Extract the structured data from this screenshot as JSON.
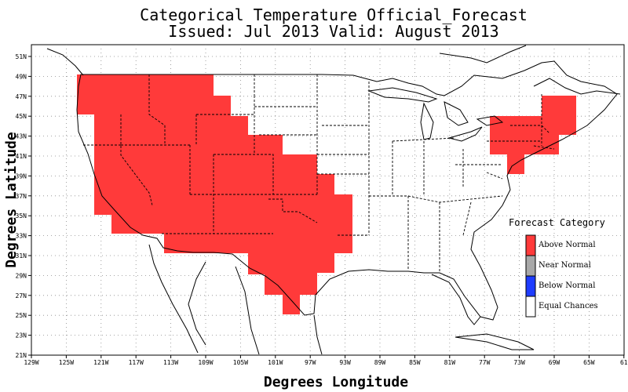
{
  "title": {
    "line1": "Categorical Temperature Official_Forecast",
    "line2": "Issued: Jul 2013 Valid: August 2013"
  },
  "axes": {
    "xlabel": "Degrees Longitude",
    "ylabel": "Degrees Latitude",
    "x_ticks": [
      "129W",
      "125W",
      "121W",
      "117W",
      "113W",
      "109W",
      "105W",
      "101W",
      "97W",
      "93W",
      "89W",
      "85W",
      "81W",
      "77W",
      "73W",
      "69W",
      "65W",
      "61"
    ],
    "y_ticks": [
      "21N",
      "23N",
      "25N",
      "27N",
      "29N",
      "31N",
      "33N",
      "35N",
      "37N",
      "39N",
      "41N",
      "43N",
      "45N",
      "47N",
      "49N",
      "51N"
    ]
  },
  "legend": {
    "title": "Forecast Category",
    "items": [
      {
        "label": "Above Normal",
        "color": "#ff3a3a"
      },
      {
        "label": "Near Normal",
        "color": "#a8a8a8"
      },
      {
        "label": "Below Normal",
        "color": "#1e3cff"
      },
      {
        "label": "Equal Chances",
        "color": "#ffffff"
      }
    ]
  },
  "colors": {
    "above_normal": "#ff3a3a"
  }
}
